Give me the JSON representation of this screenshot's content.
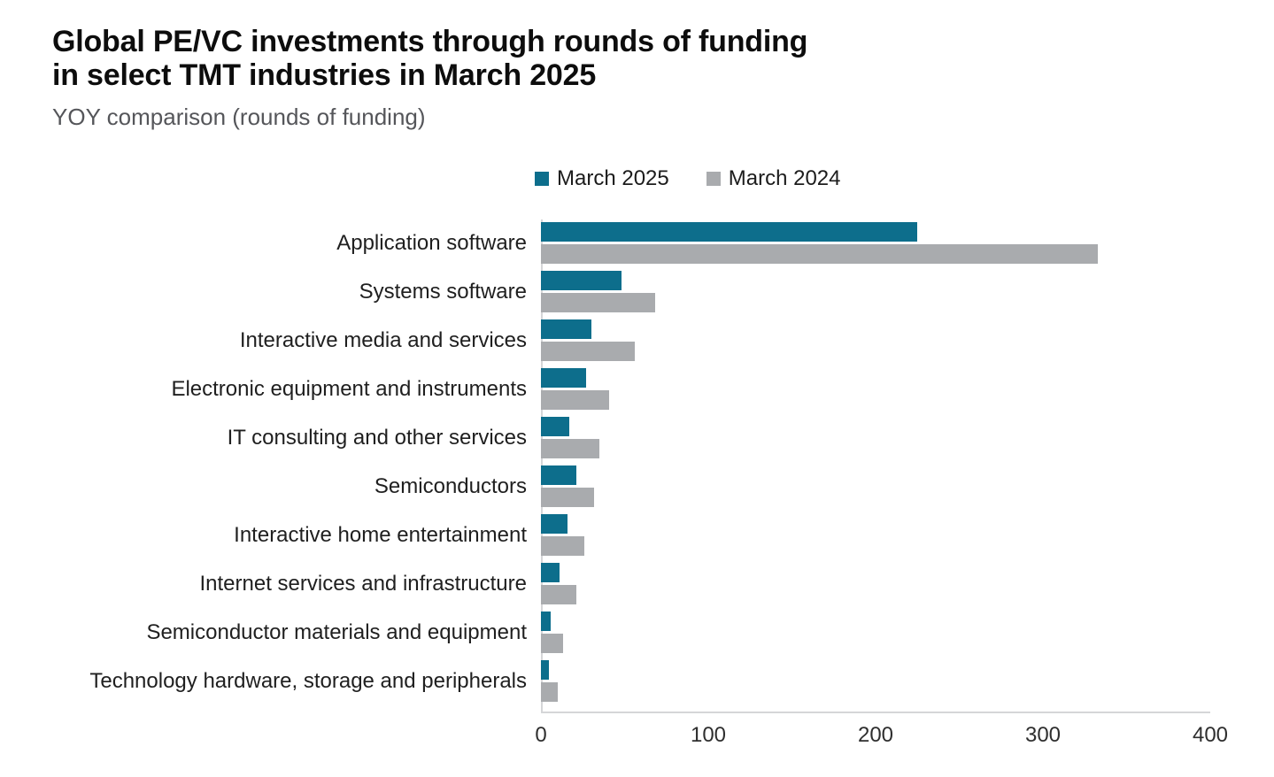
{
  "header": {
    "title": "Global PE/VC investments through rounds of funding\nin select TMT industries in March 2025",
    "subtitle": "YOY comparison (rounds of funding)"
  },
  "legend": {
    "items": [
      {
        "label": "March 2025",
        "color": "#0d6e8c"
      },
      {
        "label": "March 2024",
        "color": "#a9abae"
      }
    ]
  },
  "chart_data": {
    "type": "bar",
    "orientation": "horizontal",
    "title": "Global PE/VC investments through rounds of funding in select TMT industries in March 2025",
    "subtitle": "YOY comparison (rounds of funding)",
    "xlabel": "",
    "ylabel": "",
    "xlim": [
      0,
      400
    ],
    "x_ticks": [
      0,
      100,
      200,
      300,
      400
    ],
    "grid": false,
    "legend_position": "top",
    "categories": [
      "Application software",
      "Systems software",
      "Interactive media and services",
      "Electronic equipment and instruments",
      "IT consulting and other services",
      "Semiconductors",
      "Interactive home entertainment",
      "Internet services and infrastructure",
      "Semiconductor materials and equipment",
      "Technology hardware, storage and peripherals"
    ],
    "series": [
      {
        "name": "March 2025",
        "color": "#0d6e8c",
        "values": [
          225,
          48,
          30,
          27,
          17,
          21,
          16,
          11,
          6,
          5
        ]
      },
      {
        "name": "March 2024",
        "color": "#a9abae",
        "values": [
          333,
          68,
          56,
          41,
          35,
          32,
          26,
          21,
          13,
          10
        ]
      }
    ]
  }
}
